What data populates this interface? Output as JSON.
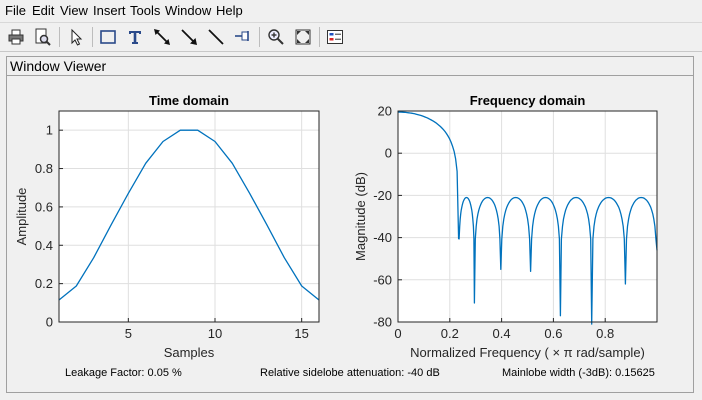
{
  "menubar": {
    "items": [
      "File",
      "Edit",
      "View",
      "Insert",
      "Tools",
      "Window",
      "Help"
    ]
  },
  "toolbar": {
    "tools": [
      {
        "icon": "print-icon"
      },
      {
        "icon": "print-preview-icon"
      },
      {
        "icon": "edit-plot-arrow-icon"
      },
      {
        "icon": "insert-rectangle-icon"
      },
      {
        "icon": "insert-text-icon"
      },
      {
        "icon": "insert-double-arrow-icon"
      },
      {
        "icon": "insert-arrow-icon"
      },
      {
        "icon": "insert-line-icon"
      },
      {
        "icon": "pin-icon"
      },
      {
        "icon": "zoom-in-icon"
      },
      {
        "icon": "zoom-to-fit-icon"
      },
      {
        "icon": "legend-icon"
      }
    ]
  },
  "panel": {
    "title": "Window Viewer"
  },
  "chart_data": [
    {
      "type": "line",
      "title": "Time domain",
      "xlabel": "Samples",
      "ylabel": "Amplitude",
      "xlim": [
        1,
        16
      ],
      "ylim": [
        0,
        1.1
      ],
      "xticks": [
        5,
        10,
        15
      ],
      "yticks": [
        0,
        0.2,
        0.4,
        0.6,
        0.8,
        1
      ],
      "grid": true,
      "x": [
        1,
        2,
        3,
        4,
        5,
        6,
        7,
        8,
        9,
        10,
        11,
        12,
        13,
        14,
        15,
        16
      ],
      "y": [
        0.1149,
        0.1876,
        0.3354,
        0.5054,
        0.6706,
        0.8275,
        0.9408,
        1.0,
        1.0,
        0.9408,
        0.8275,
        0.6706,
        0.5054,
        0.3354,
        0.1876,
        0.1149
      ],
      "color": "#0072bd"
    },
    {
      "type": "line",
      "title": "Frequency domain",
      "xlabel": "Normalized Frequency  ( × π rad/sample)",
      "ylabel": "Magnitude (dB)",
      "xlim": [
        0,
        1
      ],
      "ylim": [
        -80,
        20
      ],
      "xticks": [
        0,
        0.2,
        0.4,
        0.6,
        0.8
      ],
      "xtick_labels": [
        "0",
        "0.2",
        "0.4",
        "0.6",
        "0.8"
      ],
      "yticks": [
        -80,
        -60,
        -40,
        -20,
        0,
        20
      ],
      "grid": true,
      "nulls": [
        [
          0.234,
          -46
        ],
        [
          0.295,
          -71
        ],
        [
          0.397,
          -55
        ],
        [
          0.512,
          -56
        ],
        [
          0.627,
          -77
        ],
        [
          0.748,
          -81
        ],
        [
          0.878,
          -62
        ],
        [
          1.0,
          -46
        ]
      ],
      "lobe_peaks": [
        [
          0.258,
          -21
        ],
        [
          0.342,
          -21
        ],
        [
          0.453,
          -21
        ],
        [
          0.568,
          -21
        ],
        [
          0.686,
          -21
        ],
        [
          0.811,
          -21
        ],
        [
          0.94,
          -21
        ]
      ],
      "color": "#0072bd"
    }
  ],
  "info": {
    "leakage": "Leakage Factor: 0.05 %",
    "sidelobe": "Relative sidelobe attenuation: -40 dB",
    "mainlobe": "Mainlobe width (-3dB): 0.15625"
  }
}
